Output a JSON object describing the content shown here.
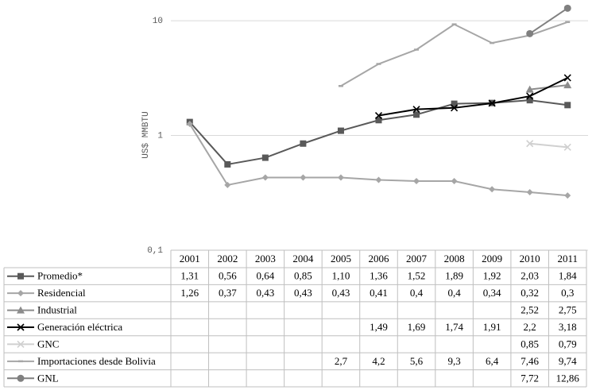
{
  "chart_data": {
    "type": "line",
    "y_label": "US$ MMBTU",
    "log_scale": true,
    "grid": true,
    "ylim": [
      0.1,
      14
    ],
    "yticks": [
      {
        "value": 0.1,
        "label": "0,1"
      },
      1,
      10
    ],
    "categories": [
      "2001",
      "2002",
      "2003",
      "2004",
      "2005",
      "2006",
      "2007",
      "2008",
      "2009",
      "2010",
      "2011"
    ],
    "series": [
      {
        "name": "Promedio*",
        "color": "#595959",
        "marker": "square",
        "values": [
          1.31,
          0.56,
          0.64,
          0.85,
          1.1,
          1.36,
          1.52,
          1.89,
          1.92,
          2.03,
          1.84
        ],
        "value_labels": [
          "1,31",
          "0,56",
          "0,64",
          "0,85",
          "1,10",
          "1,36",
          "1,52",
          "1,89",
          "1,92",
          "2,03",
          "1,84"
        ]
      },
      {
        "name": "Residencial",
        "color": "#a6a6a6",
        "marker": "diamond",
        "values": [
          1.26,
          0.37,
          0.43,
          0.43,
          0.43,
          0.41,
          0.4,
          0.4,
          0.34,
          0.32,
          0.3
        ],
        "value_labels": [
          "1,26",
          "0,37",
          "0,43",
          "0,43",
          "0,43",
          "0,41",
          "0,4",
          "0,4",
          "0,34",
          "0,32",
          "0,3"
        ]
      },
      {
        "name": "Industrial",
        "color": "#8c8c8c",
        "marker": "triangle",
        "values": [
          null,
          null,
          null,
          null,
          null,
          null,
          null,
          null,
          null,
          2.52,
          2.75
        ],
        "value_labels": [
          null,
          null,
          null,
          null,
          null,
          null,
          null,
          null,
          null,
          "2,52",
          "2,75"
        ]
      },
      {
        "name": "Generación eléctrica",
        "color": "#000000",
        "marker": "x",
        "values": [
          null,
          null,
          null,
          null,
          null,
          1.49,
          1.69,
          1.74,
          1.91,
          2.2,
          3.18
        ],
        "value_labels": [
          null,
          null,
          null,
          null,
          null,
          "1,49",
          "1,69",
          "1,74",
          "1,91",
          "2,2",
          "3,18"
        ]
      },
      {
        "name": "GNC",
        "color": "#d0d0d0",
        "marker": "x",
        "values": [
          null,
          null,
          null,
          null,
          null,
          null,
          null,
          null,
          null,
          0.85,
          0.79
        ],
        "value_labels": [
          null,
          null,
          null,
          null,
          null,
          null,
          null,
          null,
          null,
          "0,85",
          "0,79"
        ]
      },
      {
        "name": "Importaciones desde Bolivia",
        "color": "#a6a6a6",
        "marker": "dash",
        "values": [
          null,
          null,
          null,
          null,
          2.7,
          4.2,
          5.6,
          9.3,
          6.4,
          7.46,
          9.74
        ],
        "value_labels": [
          null,
          null,
          null,
          null,
          "2,7",
          "4,2",
          "5,6",
          "9,3",
          "6,4",
          "7,46",
          "9,74"
        ]
      },
      {
        "name": "GNL",
        "color": "#808080",
        "marker": "circle",
        "values": [
          null,
          null,
          null,
          null,
          null,
          null,
          null,
          null,
          null,
          7.72,
          12.86
        ],
        "value_labels": [
          null,
          null,
          null,
          null,
          null,
          null,
          null,
          null,
          null,
          "7,72",
          "12,86"
        ]
      }
    ]
  }
}
